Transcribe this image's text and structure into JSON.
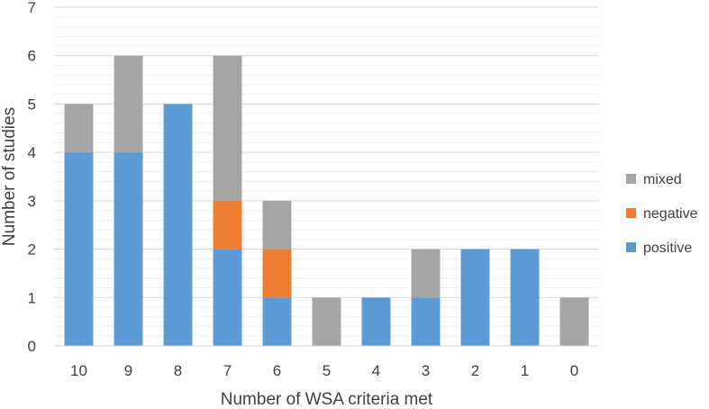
{
  "chart_data": {
    "type": "bar",
    "stacked": true,
    "categories": [
      "10",
      "9",
      "8",
      "7",
      "6",
      "5",
      "4",
      "3",
      "2",
      "1",
      "0"
    ],
    "series": [
      {
        "name": "positive",
        "color": "#5b9bd5",
        "values": [
          4,
          4,
          5,
          2,
          1,
          0,
          1,
          1,
          2,
          2,
          0
        ]
      },
      {
        "name": "negative",
        "color": "#ed7d31",
        "values": [
          0,
          0,
          0,
          1,
          1,
          0,
          0,
          0,
          0,
          0,
          0
        ]
      },
      {
        "name": "mixed",
        "color": "#a5a5a5",
        "values": [
          1,
          2,
          0,
          3,
          1,
          1,
          0,
          1,
          0,
          0,
          1
        ]
      }
    ],
    "title": "",
    "xlabel": "Number of WSA criteria met",
    "ylabel": "Number of studies",
    "ylim": [
      0,
      7
    ],
    "yticks": [
      "0",
      "1",
      "2",
      "3",
      "4",
      "5",
      "6",
      "7"
    ],
    "grid": true,
    "legend_position": "right",
    "legend_order": [
      "mixed",
      "negative",
      "positive"
    ]
  }
}
